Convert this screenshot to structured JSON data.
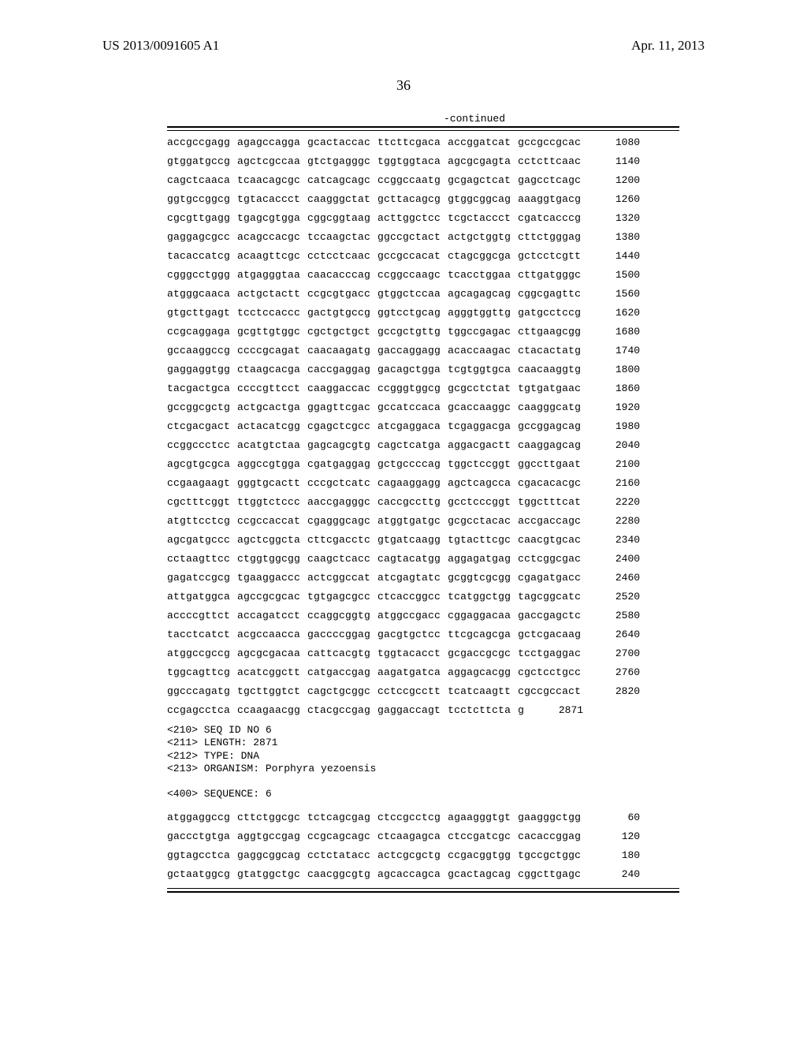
{
  "header": {
    "patent_no": "US 2013/0091605 A1",
    "date": "Apr. 11, 2013"
  },
  "page_number": "36",
  "continued_label": "-continued",
  "sequence_rows_1": [
    {
      "g": [
        "accgccgagg",
        "agagccagga",
        "gcactaccac",
        "ttcttcgaca",
        "accggatcat",
        "gccgccgcac"
      ],
      "p": "1080"
    },
    {
      "g": [
        "gtggatgccg",
        "agctcgccaa",
        "gtctgagggc",
        "tggtggtaca",
        "agcgcgagta",
        "cctcttcaac"
      ],
      "p": "1140"
    },
    {
      "g": [
        "cagctcaaca",
        "tcaacagcgc",
        "catcagcagc",
        "ccggccaatg",
        "gcgagctcat",
        "gagcctcagc"
      ],
      "p": "1200"
    },
    {
      "g": [
        "ggtgccggcg",
        "tgtacaccct",
        "caagggctat",
        "gcttacagcg",
        "gtggcggcag",
        "aaaggtgacg"
      ],
      "p": "1260"
    },
    {
      "g": [
        "cgcgttgagg",
        "tgagcgtgga",
        "cggcggtaag",
        "acttggctcc",
        "tcgctaccct",
        "cgatcacccg"
      ],
      "p": "1320"
    },
    {
      "g": [
        "gaggagcgcc",
        "acagccacgc",
        "tccaagctac",
        "ggccgctact",
        "actgctggtg",
        "cttctgggag"
      ],
      "p": "1380"
    },
    {
      "g": [
        "tacaccatcg",
        "acaagttcgc",
        "cctcctcaac",
        "gccgccacat",
        "ctagcggcga",
        "gctcctcgtt"
      ],
      "p": "1440"
    },
    {
      "g": [
        "cgggcctggg",
        "atgagggtaa",
        "caacacccag",
        "ccggccaagc",
        "tcacctggaa",
        "cttgatgggc"
      ],
      "p": "1500"
    },
    {
      "g": [
        "atgggcaaca",
        "actgctactt",
        "ccgcgtgacc",
        "gtggctccaa",
        "agcagagcag",
        "cggcgagttc"
      ],
      "p": "1560"
    },
    {
      "g": [
        "gtgcttgagt",
        "tcctccaccc",
        "gactgtgccg",
        "ggtcctgcag",
        "agggtggttg",
        "gatgcctccg"
      ],
      "p": "1620"
    },
    {
      "g": [
        "ccgcaggaga",
        "gcgttgtggc",
        "cgctgctgct",
        "gccgctgttg",
        "tggccgagac",
        "cttgaagcgg"
      ],
      "p": "1680"
    },
    {
      "g": [
        "gccaaggccg",
        "ccccgcagat",
        "caacaagatg",
        "gaccaggagg",
        "acaccaagac",
        "ctacactatg"
      ],
      "p": "1740"
    },
    {
      "g": [
        "gaggaggtgg",
        "ctaagcacga",
        "caccgaggag",
        "gacagctgga",
        "tcgtggtgca",
        "caacaaggtg"
      ],
      "p": "1800"
    },
    {
      "g": [
        "tacgactgca",
        "ccccgttcct",
        "caaggaccac",
        "ccgggtggcg",
        "gcgcctctat",
        "tgtgatgaac"
      ],
      "p": "1860"
    },
    {
      "g": [
        "gccggcgctg",
        "actgcactga",
        "ggagttcgac",
        "gccatccaca",
        "gcaccaaggc",
        "caagggcatg"
      ],
      "p": "1920"
    },
    {
      "g": [
        "ctcgacgact",
        "actacatcgg",
        "cgagctcgcc",
        "atcgaggaca",
        "tcgaggacga",
        "gccggagcag"
      ],
      "p": "1980"
    },
    {
      "g": [
        "ccggccctcc",
        "acatgtctaa",
        "gagcagcgtg",
        "cagctcatga",
        "aggacgactt",
        "caaggagcag"
      ],
      "p": "2040"
    },
    {
      "g": [
        "agcgtgcgca",
        "aggccgtgga",
        "cgatgaggag",
        "gctgccccag",
        "tggctccggt",
        "ggccttgaat"
      ],
      "p": "2100"
    },
    {
      "g": [
        "ccgaagaagt",
        "gggtgcactt",
        "cccgctcatc",
        "cagaaggagg",
        "agctcagcca",
        "cgacacacgc"
      ],
      "p": "2160"
    },
    {
      "g": [
        "cgctttcggt",
        "ttggtctccc",
        "aaccgagggc",
        "caccgccttg",
        "gcctcccggt",
        "tggctttcat"
      ],
      "p": "2220"
    },
    {
      "g": [
        "atgttcctcg",
        "ccgccaccat",
        "cgagggcagc",
        "atggtgatgc",
        "gcgcctacac",
        "accgaccagc"
      ],
      "p": "2280"
    },
    {
      "g": [
        "agcgatgccc",
        "agctcggcta",
        "cttcgacctc",
        "gtgatcaagg",
        "tgtacttcgc",
        "caacgtgcac"
      ],
      "p": "2340"
    },
    {
      "g": [
        "cctaagttcc",
        "ctggtggcgg",
        "caagctcacc",
        "cagtacatgg",
        "aggagatgag",
        "cctcggcgac"
      ],
      "p": "2400"
    },
    {
      "g": [
        "gagatccgcg",
        "tgaaggaccc",
        "actcggccat",
        "atcgagtatc",
        "gcggtcgcgg",
        "cgagatgacc"
      ],
      "p": "2460"
    },
    {
      "g": [
        "attgatggca",
        "agccgcgcac",
        "tgtgagcgcc",
        "ctcaccggcc",
        "tcatggctgg",
        "tagcggcatc"
      ],
      "p": "2520"
    },
    {
      "g": [
        "accccgttct",
        "accagatcct",
        "ccaggcggtg",
        "atggccgacc",
        "cggaggacaa",
        "gaccgagctc"
      ],
      "p": "2580"
    },
    {
      "g": [
        "tacctcatct",
        "acgccaacca",
        "gaccccggag",
        "gacgtgctcc",
        "ttcgcagcga",
        "gctcgacaag"
      ],
      "p": "2640"
    },
    {
      "g": [
        "atggccgccg",
        "agcgcgacaa",
        "cattcacgtg",
        "tggtacacct",
        "gcgaccgcgc",
        "tcctgaggac"
      ],
      "p": "2700"
    },
    {
      "g": [
        "tggcagttcg",
        "acatcggctt",
        "catgaccgag",
        "aagatgatca",
        "aggagcacgg",
        "cgctcctgcc"
      ],
      "p": "2760"
    },
    {
      "g": [
        "ggcccagatg",
        "tgcttggtct",
        "cagctgcggc",
        "cctccgcctt",
        "tcatcaagtt",
        "cgccgccact"
      ],
      "p": "2820"
    },
    {
      "g": [
        "ccgagcctca",
        "ccaagaacgg",
        "ctacgccgag",
        "gaggaccagt",
        "tcctcttcta",
        "g"
      ],
      "p": "2871"
    }
  ],
  "meta": {
    "line1": "<210> SEQ ID NO 6",
    "line2": "<211> LENGTH: 2871",
    "line3": "<212> TYPE: DNA",
    "line4": "<213> ORGANISM: Porphyra yezoensis",
    "line5": "<400> SEQUENCE: 6"
  },
  "sequence_rows_2": [
    {
      "g": [
        "atggaggccg",
        "cttctggcgc",
        "tctcagcgag",
        "ctccgcctcg",
        "agaagggtgt",
        "gaagggctgg"
      ],
      "p": "60"
    },
    {
      "g": [
        "gaccctgtga",
        "aggtgccgag",
        "ccgcagcagc",
        "ctcaagagca",
        "ctccgatcgc",
        "cacaccggag"
      ],
      "p": "120"
    },
    {
      "g": [
        "ggtagcctca",
        "gaggcggcag",
        "cctctatacc",
        "actcgcgctg",
        "ccgacggtgg",
        "tgccgctggc"
      ],
      "p": "180"
    },
    {
      "g": [
        "gctaatggcg",
        "gtatggctgc",
        "caacggcgtg",
        "agcaccagca",
        "gcactagcag",
        "cggcttgagc"
      ],
      "p": "240"
    }
  ]
}
